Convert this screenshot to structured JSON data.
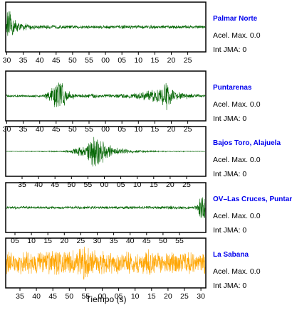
{
  "chart_data": [
    {
      "type": "line",
      "station": "Palmar Norte",
      "accel_text": "Acel. Max. 0.0",
      "jma_text": "Int JMA: 0",
      "color": "#006400",
      "tick_labels": [
        "30",
        "35",
        "40",
        "45",
        "50",
        "55",
        "00",
        "05",
        "10",
        "15",
        "20",
        "25"
      ],
      "ylim": [
        -1,
        1
      ],
      "envelope": [
        {
          "t": 0.0,
          "a": 0.1
        },
        {
          "t": 0.3,
          "a": 0.95
        },
        {
          "t": 1.6,
          "a": 0.55
        },
        {
          "t": 4,
          "a": 0.2
        },
        {
          "t": 9,
          "a": 0.1
        },
        {
          "t": 18,
          "a": 0.08
        },
        {
          "t": 30,
          "a": 0.09
        },
        {
          "t": 60,
          "a": 0.08
        }
      ]
    },
    {
      "type": "line",
      "station": "Puntarenas",
      "accel_text": "Acel. Max. 0.0",
      "jma_text": "Int JMA: 0",
      "color": "#006400",
      "tick_labels": [
        "30",
        "35",
        "40",
        "45",
        "50",
        "55",
        "00",
        "05",
        "10",
        "15",
        "20",
        "25"
      ],
      "ylim": [
        -1,
        1
      ],
      "envelope": [
        {
          "t": 0,
          "a": 0.05
        },
        {
          "t": 11,
          "a": 0.06
        },
        {
          "t": 14,
          "a": 0.45
        },
        {
          "t": 16.2,
          "a": 0.95
        },
        {
          "t": 18,
          "a": 0.3
        },
        {
          "t": 21,
          "a": 0.08
        },
        {
          "t": 26,
          "a": 0.12
        },
        {
          "t": 32,
          "a": 0.08
        },
        {
          "t": 40,
          "a": 0.15
        },
        {
          "t": 46,
          "a": 0.35
        },
        {
          "t": 48.5,
          "a": 0.7
        },
        {
          "t": 51,
          "a": 0.2
        },
        {
          "t": 60,
          "a": 0.06
        }
      ]
    },
    {
      "type": "line",
      "station": "Bajos Toro, Alajuela",
      "accel_text": "Acel. Max. 0.0",
      "jma_text": "Int JMA: 0",
      "color": "#006400",
      "tick_labels": [
        "35",
        "40",
        "45",
        "50",
        "55",
        "00",
        "05",
        "10",
        "15",
        "20",
        "25"
      ],
      "ylim": [
        -1,
        1
      ],
      "envelope": [
        {
          "t": 0,
          "a": 0.01
        },
        {
          "t": 17,
          "a": 0.03
        },
        {
          "t": 20,
          "a": 0.1
        },
        {
          "t": 24,
          "a": 0.3
        },
        {
          "t": 27,
          "a": 0.95
        },
        {
          "t": 29,
          "a": 0.55
        },
        {
          "t": 32,
          "a": 0.2
        },
        {
          "t": 38,
          "a": 0.08
        },
        {
          "t": 45,
          "a": 0.03
        },
        {
          "t": 60,
          "a": 0.01
        }
      ]
    },
    {
      "type": "line",
      "station": "OV–Las Cruces, Puntarenas",
      "accel_text": "Acel. Max. 0.0",
      "jma_text": "Int JMA: 0",
      "color": "#006400",
      "tick_labels": [
        "05",
        "10",
        "15",
        "20",
        "25",
        "30",
        "35",
        "40",
        "45",
        "50",
        "55"
      ],
      "ylim": [
        -1,
        1
      ],
      "envelope": [
        {
          "t": 0,
          "a": 0.06
        },
        {
          "t": 57.5,
          "a": 0.08
        },
        {
          "t": 58.7,
          "a": 0.6
        },
        {
          "t": 60,
          "a": 0.9
        }
      ]
    },
    {
      "type": "line",
      "station": "La Sabana",
      "accel_text": "Acel. Max. 0.0",
      "jma_text": "Int JMA: 0",
      "color": "#FFA500",
      "tick_labels": [
        "35",
        "40",
        "45",
        "50",
        "55",
        "00",
        "05",
        "10",
        "15",
        "20",
        "25",
        "30"
      ],
      "ylim": [
        -1,
        1
      ],
      "envelope": [
        {
          "t": 0,
          "a": 0.55
        },
        {
          "t": 20,
          "a": 0.6
        },
        {
          "t": 24,
          "a": 0.9
        },
        {
          "t": 28,
          "a": 0.55
        },
        {
          "t": 40,
          "a": 0.5
        },
        {
          "t": 42,
          "a": 0.75
        },
        {
          "t": 44,
          "a": 0.5
        },
        {
          "t": 60,
          "a": 0.55
        }
      ]
    }
  ],
  "xlabel": "Tiempo (s)"
}
